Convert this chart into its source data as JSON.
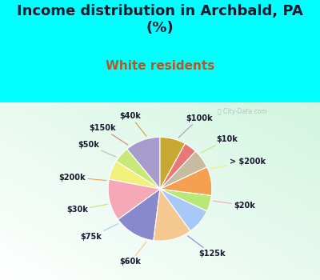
{
  "title": "Income distribution in Archbald, PA\n(%)",
  "subtitle": "White residents",
  "title_color": "#1a1a2e",
  "subtitle_color": "#b05a28",
  "background_top": "#00ffff",
  "labels": [
    "$100k",
    "$10k",
    "> $200k",
    "$20k",
    "$125k",
    "$60k",
    "$75k",
    "$30k",
    "$200k",
    "$50k",
    "$150k",
    "$40k"
  ],
  "values": [
    11,
    5,
    6,
    13,
    13,
    12,
    8,
    5,
    9,
    6,
    4,
    8
  ],
  "colors": [
    "#a89ccc",
    "#c8e87a",
    "#f0f07a",
    "#f4a8b8",
    "#8888cc",
    "#f5c891",
    "#a8c8f8",
    "#b8e878",
    "#f5a050",
    "#c8bca0",
    "#e87878",
    "#c8a830"
  ],
  "title_fontsize": 13,
  "subtitle_fontsize": 11,
  "label_fontsize": 7
}
